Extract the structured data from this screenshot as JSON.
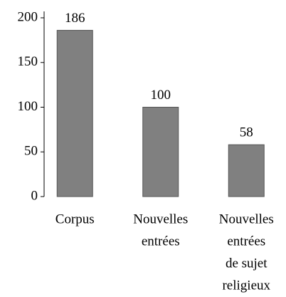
{
  "chart_data": {
    "type": "bar",
    "categories": [
      [
        "Corpus"
      ],
      [
        "Nouvelles",
        "entrées"
      ],
      [
        "Nouvelles",
        "entrées",
        "de sujet",
        "religieux"
      ]
    ],
    "values": [
      186,
      100,
      58
    ],
    "color": "#808080",
    "ylim": [
      0,
      200
    ],
    "yticks": [
      0,
      50,
      100,
      150,
      200
    ],
    "grid": false
  }
}
